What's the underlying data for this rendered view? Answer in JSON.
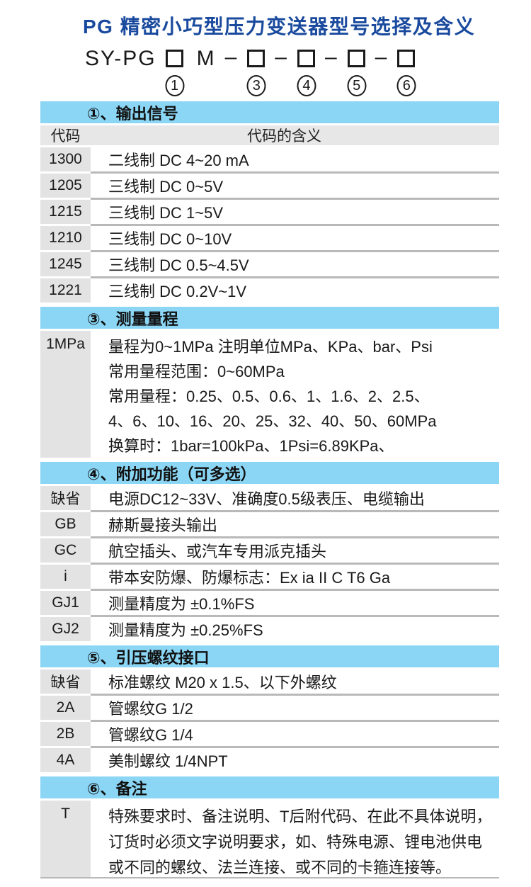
{
  "title": "PG 精密小巧型压力变送器型号选择及含义",
  "model_code": {
    "prefix": "SY-PG",
    "fixed_letter": "M",
    "dash": "–",
    "slot_digits": [
      "1",
      "3",
      "4",
      "5",
      "6"
    ]
  },
  "table": {
    "sections": [
      {
        "header": "①、输出信号",
        "columns": {
          "code": "代码",
          "meaning": "代码的含义"
        },
        "rows": [
          {
            "code": "1300",
            "meaning": "二线制 DC 4~20 mA"
          },
          {
            "code": "1205",
            "meaning": "三线制 DC 0~5V"
          },
          {
            "code": "1215",
            "meaning": "三线制 DC 1~5V"
          },
          {
            "code": "1210",
            "meaning": "三线制 DC 0~10V"
          },
          {
            "code": "1245",
            "meaning": "三线制 DC 0.5~4.5V"
          },
          {
            "code": "1221",
            "meaning": "三线制 DC 0.2V~1V"
          }
        ]
      },
      {
        "header": "③、测量量程",
        "rows": [
          {
            "code": "1MPa",
            "lines": [
              "量程为0~1MPa 注明单位MPa、KPa、bar、Psi",
              "常用量程范围：0~60MPa",
              "常用量程：0.25、0.5、0.6、1、1.6、2、2.5、",
              "4、6、10、16、20、25、32、40、50、60MPa",
              "换算时：1bar=100kPa、1Psi=6.89KPa、"
            ]
          }
        ]
      },
      {
        "header": "④、附加功能（可多选）",
        "rows": [
          {
            "code": "缺省",
            "meaning": "电源DC12~33V、准确度0.5级表压、电缆输出"
          },
          {
            "code": "GB",
            "meaning": "赫斯曼接头输出"
          },
          {
            "code": "GC",
            "meaning": "航空插头、或汽车专用派克插头"
          },
          {
            "code": "i",
            "meaning": "带本安防爆、防爆标志：Ex ia II C T6 Ga"
          },
          {
            "code": "GJ1",
            "meaning": "测量精度为 ±0.1%FS"
          },
          {
            "code": "GJ2",
            "meaning": "测量精度为 ±0.25%FS"
          }
        ]
      },
      {
        "header": "⑤、引压螺纹接口",
        "rows": [
          {
            "code": "缺省",
            "meaning": "标准螺纹 M20 x 1.5、以下外螺纹"
          },
          {
            "code": "2A",
            "meaning": "管螺纹G 1/2"
          },
          {
            "code": "2B",
            "meaning": "管螺纹G 1/4"
          },
          {
            "code": "4A",
            "meaning": "美制螺纹 1/4NPT"
          }
        ]
      },
      {
        "header": "⑥、备注",
        "rows": [
          {
            "code": "T",
            "lines": [
              "特殊要求时、备注说明、T后附代码、在此不具体说明，",
              "订货时必须文字说明要求，如、特殊电源、锂电池供电",
              "或不同的螺纹、法兰连接、或不同的卡箍连接等。"
            ]
          }
        ]
      }
    ]
  },
  "colors": {
    "title_blue": "#1a4a9e",
    "section_header_cyan": "#8bd6f5",
    "header_row_gray": "#e7e7e7",
    "code_cell_gray": "#e3e3e3",
    "separator_gray": "#b9b9b9"
  }
}
